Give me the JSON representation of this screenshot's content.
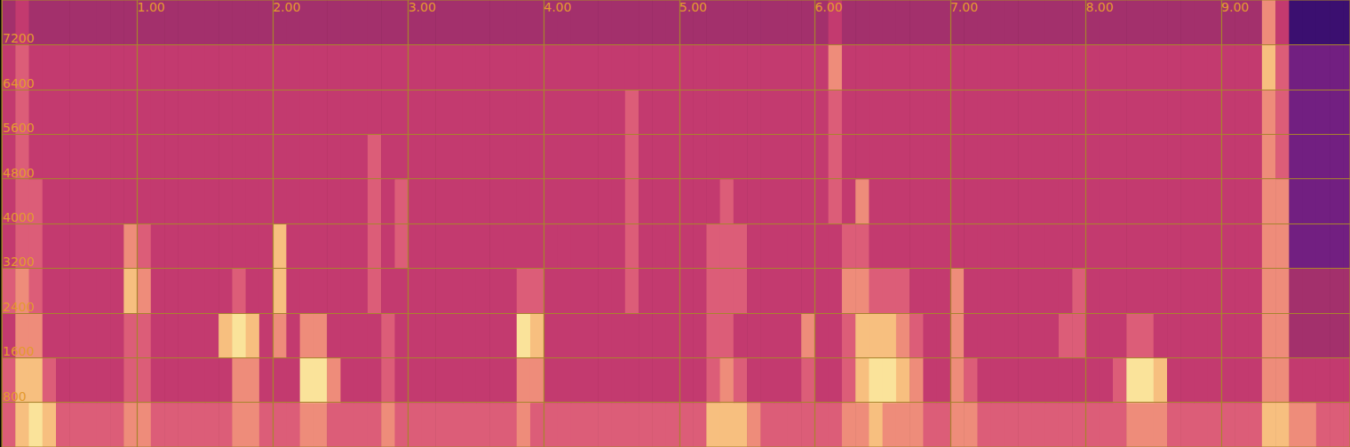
{
  "chart_data": {
    "type": "heatmap",
    "xlim": [
      0,
      9.95
    ],
    "ylim": [
      0,
      8000
    ],
    "xticks": [
      {
        "value": 1,
        "label": "1.00"
      },
      {
        "value": 2,
        "label": "2.00"
      },
      {
        "value": 3,
        "label": "3.00"
      },
      {
        "value": 4,
        "label": "4.00"
      },
      {
        "value": 5,
        "label": "5.00"
      },
      {
        "value": 6,
        "label": "6.00"
      },
      {
        "value": 7,
        "label": "7.00"
      },
      {
        "value": 8,
        "label": "8.00"
      },
      {
        "value": 9,
        "label": "9.00"
      }
    ],
    "yticks": [
      800,
      1600,
      2400,
      3200,
      4000,
      4800,
      5600,
      6400,
      7200
    ],
    "grid": true,
    "color_range": [
      0,
      10
    ],
    "x_bins": [
      0,
      0.1,
      0.2,
      0.3,
      0.4,
      0.5,
      0.6,
      0.7,
      0.8,
      0.9,
      1.0,
      1.1,
      1.2,
      1.3,
      1.4,
      1.5,
      1.6,
      1.7,
      1.8,
      1.9,
      2.0,
      2.1,
      2.2,
      2.3,
      2.4,
      2.5,
      2.6,
      2.7,
      2.8,
      2.9,
      3.0,
      3.1,
      3.2,
      3.3,
      3.4,
      3.5,
      3.6,
      3.7,
      3.8,
      3.9,
      4.0,
      4.1,
      4.2,
      4.3,
      4.4,
      4.5,
      4.6,
      4.7,
      4.8,
      4.9,
      5.0,
      5.1,
      5.2,
      5.3,
      5.4,
      5.5,
      5.6,
      5.7,
      5.8,
      5.9,
      6.0,
      6.1,
      6.2,
      6.3,
      6.4,
      6.5,
      6.6,
      6.7,
      6.8,
      6.9,
      7.0,
      7.1,
      7.2,
      7.3,
      7.4,
      7.5,
      7.6,
      7.7,
      7.8,
      7.9,
      8.0,
      8.1,
      8.2,
      8.3,
      8.4,
      8.5,
      8.6,
      8.7,
      8.8,
      8.9,
      9.0,
      9.1,
      9.2,
      9.3,
      9.4,
      9.5,
      9.6,
      9.7,
      9.8,
      9.9,
      9.95
    ],
    "y_bins": [
      0,
      800,
      1600,
      2400,
      3200,
      4000,
      4800,
      5600,
      6400,
      7200,
      8000
    ],
    "cells": [
      [
        6,
        8,
        9,
        8,
        6,
        6,
        6,
        6,
        6,
        7,
        7,
        6,
        6,
        6,
        6,
        6,
        6,
        7,
        7,
        6,
        6,
        6,
        7,
        7,
        6,
        6,
        6,
        6,
        7,
        6,
        6,
        6,
        6,
        6,
        6,
        6,
        6,
        6,
        7,
        6,
        6,
        6,
        6,
        6,
        6,
        6,
        6,
        6,
        6,
        6,
        6,
        6,
        8,
        8,
        8,
        7,
        6,
        6,
        6,
        6,
        6,
        6,
        7,
        7,
        8,
        7,
        7,
        7,
        6,
        6,
        7,
        7,
        6,
        6,
        6,
        6,
        6,
        6,
        6,
        6,
        6,
        6,
        6,
        7,
        7,
        7,
        6,
        6,
        6,
        6,
        6,
        6,
        6,
        8,
        8,
        7,
        7,
        6,
        6,
        6
      ],
      [
        6,
        8,
        8,
        6,
        5,
        5,
        5,
        5,
        5,
        6,
        6,
        5,
        5,
        5,
        5,
        5,
        5,
        7,
        7,
        5,
        5,
        5,
        9,
        9,
        7,
        5,
        5,
        5,
        6,
        5,
        5,
        5,
        5,
        5,
        5,
        5,
        5,
        5,
        7,
        7,
        5,
        5,
        5,
        5,
        5,
        5,
        5,
        5,
        5,
        5,
        5,
        5,
        6,
        7,
        6,
        5,
        5,
        5,
        5,
        6,
        5,
        5,
        6,
        8,
        9,
        9,
        8,
        7,
        5,
        5,
        7,
        6,
        5,
        5,
        5,
        5,
        5,
        5,
        5,
        5,
        5,
        5,
        6,
        9,
        9,
        8,
        5,
        5,
        5,
        5,
        5,
        5,
        5,
        7,
        7,
        5,
        5,
        5,
        5,
        5
      ],
      [
        5,
        7,
        7,
        5,
        5,
        5,
        5,
        5,
        5,
        6,
        6,
        5,
        5,
        5,
        5,
        5,
        8,
        9,
        8,
        5,
        7,
        5,
        7,
        7,
        5,
        5,
        5,
        5,
        6,
        5,
        5,
        5,
        5,
        5,
        5,
        5,
        5,
        5,
        9,
        8,
        5,
        5,
        5,
        5,
        5,
        5,
        5,
        5,
        5,
        5,
        5,
        5,
        6,
        6,
        5,
        5,
        5,
        5,
        5,
        7,
        5,
        5,
        6,
        8,
        8,
        8,
        7,
        6,
        5,
        5,
        7,
        5,
        5,
        5,
        5,
        5,
        5,
        5,
        6,
        6,
        5,
        5,
        5,
        6,
        6,
        5,
        5,
        5,
        5,
        5,
        5,
        5,
        5,
        7,
        7,
        4,
        4,
        4,
        4,
        4
      ],
      [
        6,
        7,
        6,
        5,
        5,
        5,
        5,
        5,
        5,
        8,
        7,
        5,
        5,
        5,
        5,
        5,
        5,
        6,
        5,
        5,
        8,
        5,
        5,
        5,
        5,
        5,
        5,
        6,
        5,
        5,
        5,
        5,
        5,
        5,
        5,
        5,
        5,
        5,
        6,
        6,
        5,
        5,
        5,
        5,
        5,
        5,
        6,
        5,
        5,
        5,
        5,
        5,
        6,
        6,
        6,
        5,
        5,
        5,
        5,
        5,
        5,
        5,
        7,
        7,
        6,
        6,
        6,
        5,
        5,
        5,
        7,
        5,
        5,
        5,
        5,
        5,
        5,
        5,
        5,
        6,
        5,
        5,
        5,
        5,
        5,
        5,
        5,
        5,
        5,
        5,
        5,
        5,
        5,
        7,
        7,
        4,
        4,
        4,
        4,
        4
      ],
      [
        5,
        6,
        6,
        5,
        5,
        5,
        5,
        5,
        5,
        7,
        6,
        5,
        5,
        5,
        5,
        5,
        5,
        5,
        5,
        5,
        8,
        5,
        5,
        5,
        5,
        5,
        5,
        6,
        5,
        6,
        5,
        5,
        5,
        5,
        5,
        5,
        5,
        5,
        5,
        5,
        5,
        5,
        5,
        5,
        5,
        5,
        6,
        5,
        5,
        5,
        5,
        5,
        6,
        6,
        6,
        5,
        5,
        5,
        5,
        5,
        5,
        5,
        6,
        6,
        5,
        5,
        5,
        5,
        5,
        5,
        5,
        5,
        5,
        5,
        5,
        5,
        5,
        5,
        5,
        5,
        5,
        5,
        5,
        5,
        5,
        5,
        5,
        5,
        5,
        5,
        5,
        5,
        5,
        7,
        7,
        3,
        3,
        3,
        3,
        3
      ],
      [
        5,
        6,
        6,
        5,
        5,
        5,
        5,
        5,
        5,
        5,
        5,
        5,
        5,
        5,
        5,
        5,
        5,
        5,
        5,
        5,
        5,
        5,
        5,
        5,
        5,
        5,
        5,
        6,
        5,
        6,
        5,
        5,
        5,
        5,
        5,
        5,
        5,
        5,
        5,
        5,
        5,
        5,
        5,
        5,
        5,
        5,
        6,
        5,
        5,
        5,
        5,
        5,
        5,
        6,
        5,
        5,
        5,
        5,
        5,
        5,
        5,
        6,
        5,
        7,
        5,
        5,
        5,
        5,
        5,
        5,
        5,
        5,
        5,
        5,
        5,
        5,
        5,
        5,
        5,
        5,
        5,
        5,
        5,
        5,
        5,
        5,
        5,
        5,
        5,
        5,
        5,
        5,
        5,
        7,
        7,
        3,
        3,
        3,
        3,
        3
      ],
      [
        5,
        6,
        5,
        5,
        5,
        5,
        5,
        5,
        5,
        5,
        5,
        5,
        5,
        5,
        5,
        5,
        5,
        5,
        5,
        5,
        5,
        5,
        5,
        5,
        5,
        5,
        5,
        6,
        5,
        5,
        5,
        5,
        5,
        5,
        5,
        5,
        5,
        5,
        5,
        5,
        5,
        5,
        5,
        5,
        5,
        5,
        6,
        5,
        5,
        5,
        5,
        5,
        5,
        5,
        5,
        5,
        5,
        5,
        5,
        5,
        5,
        6,
        5,
        5,
        5,
        5,
        5,
        5,
        5,
        5,
        5,
        5,
        5,
        5,
        5,
        5,
        5,
        5,
        5,
        5,
        5,
        5,
        5,
        5,
        5,
        5,
        5,
        5,
        5,
        5,
        5,
        5,
        5,
        7,
        6,
        3,
        3,
        3,
        3,
        3
      ],
      [
        5,
        6,
        5,
        5,
        5,
        5,
        5,
        5,
        5,
        5,
        5,
        5,
        5,
        5,
        5,
        5,
        5,
        5,
        5,
        5,
        5,
        5,
        5,
        5,
        5,
        5,
        5,
        5,
        5,
        5,
        5,
        5,
        5,
        5,
        5,
        5,
        5,
        5,
        5,
        5,
        5,
        5,
        5,
        5,
        5,
        5,
        6,
        5,
        5,
        5,
        5,
        5,
        5,
        5,
        5,
        5,
        5,
        5,
        5,
        5,
        5,
        6,
        5,
        5,
        5,
        5,
        5,
        5,
        5,
        5,
        5,
        5,
        5,
        5,
        5,
        5,
        5,
        5,
        5,
        5,
        5,
        5,
        5,
        5,
        5,
        5,
        5,
        5,
        5,
        5,
        5,
        5,
        5,
        7,
        6,
        3,
        3,
        3,
        3,
        3
      ],
      [
        5,
        6,
        5,
        5,
        5,
        5,
        5,
        5,
        5,
        5,
        5,
        5,
        5,
        5,
        5,
        5,
        5,
        5,
        5,
        5,
        5,
        5,
        5,
        5,
        5,
        5,
        5,
        5,
        5,
        5,
        5,
        5,
        5,
        5,
        5,
        5,
        5,
        5,
        5,
        5,
        5,
        5,
        5,
        5,
        5,
        5,
        5,
        5,
        5,
        5,
        5,
        5,
        5,
        5,
        5,
        5,
        5,
        5,
        5,
        5,
        5,
        7,
        5,
        5,
        5,
        5,
        5,
        5,
        5,
        5,
        5,
        5,
        5,
        5,
        5,
        5,
        5,
        5,
        5,
        5,
        5,
        5,
        5,
        5,
        5,
        5,
        5,
        5,
        5,
        5,
        5,
        5,
        5,
        8,
        6,
        3,
        3,
        3,
        3,
        3
      ],
      [
        4,
        5,
        4,
        4,
        4,
        4,
        4,
        4,
        4,
        4,
        4,
        4,
        4,
        4,
        4,
        4,
        4,
        4,
        4,
        4,
        4,
        4,
        4,
        4,
        4,
        4,
        4,
        4,
        4,
        4,
        4,
        4,
        4,
        4,
        4,
        4,
        4,
        4,
        4,
        4,
        4,
        4,
        4,
        4,
        4,
        4,
        4,
        4,
        4,
        4,
        4,
        4,
        4,
        4,
        4,
        4,
        4,
        4,
        4,
        4,
        4,
        5,
        4,
        4,
        4,
        4,
        4,
        4,
        4,
        4,
        4,
        4,
        4,
        4,
        4,
        4,
        4,
        4,
        4,
        4,
        4,
        4,
        4,
        4,
        4,
        4,
        4,
        4,
        4,
        4,
        4,
        4,
        4,
        7,
        5,
        2,
        2,
        2,
        2,
        2
      ]
    ]
  }
}
